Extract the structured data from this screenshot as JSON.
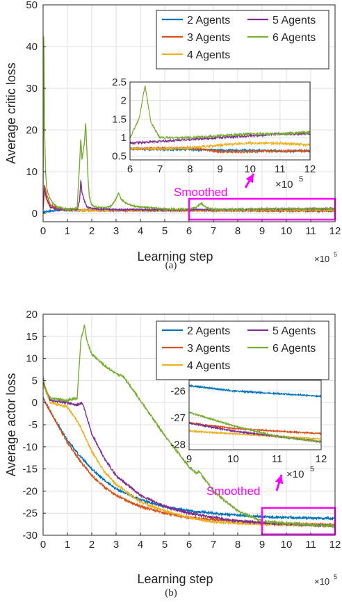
{
  "colors": {
    "2 Agents": "#0072BD",
    "3 Agents": "#D95319",
    "4 Agents": "#EDB120",
    "5 Agents": "#7E2F8E",
    "6 Agents": "#77AC30",
    "highlight": "#FF00FF"
  },
  "chart_data": [
    {
      "type": "line",
      "panel_label": "(a)",
      "xlabel": "Learning step",
      "ylabel": "Average critic loss",
      "x_multiplier": "×10",
      "x_exponent": "5",
      "xlim": [
        0,
        12
      ],
      "ylim": [
        -2,
        50
      ],
      "xticks": [
        0,
        1,
        2,
        3,
        4,
        5,
        6,
        7,
        8,
        9,
        10,
        11,
        12
      ],
      "yticks": [
        0,
        10,
        20,
        30,
        40,
        50
      ],
      "grid": true,
      "legend": {
        "location": "top-right",
        "entries": [
          "2 Agents",
          "5 Agents",
          "3 Agents",
          "6 Agents",
          "4 Agents"
        ]
      },
      "annotation": "Smoothed",
      "series": [
        {
          "name": "2 Agents",
          "x": [
            0,
            0.1,
            0.3,
            0.6,
            1.0,
            1.5,
            2,
            3,
            4,
            5,
            6,
            7,
            8,
            9,
            10,
            11,
            12
          ],
          "y": [
            0.3,
            0.4,
            0.6,
            0.7,
            0.8,
            0.7,
            0.7,
            0.7,
            0.7,
            0.7,
            0.7,
            0.68,
            0.68,
            0.66,
            0.66,
            0.64,
            0.64
          ]
        },
        {
          "name": "3 Agents",
          "x": [
            0,
            0.05,
            0.15,
            0.3,
            0.6,
            1.0,
            1.5,
            2,
            3,
            4,
            5,
            6,
            7,
            8,
            9,
            10,
            11,
            12
          ],
          "y": [
            1.0,
            7.0,
            4.5,
            2.0,
            1.2,
            0.9,
            0.8,
            0.8,
            0.75,
            0.72,
            0.7,
            0.7,
            0.72,
            0.72,
            0.62,
            0.62,
            0.64,
            0.64
          ]
        },
        {
          "name": "4 Agents",
          "x": [
            0,
            0.05,
            0.15,
            0.3,
            0.6,
            1.0,
            1.5,
            2,
            3,
            4,
            5,
            6,
            7,
            8,
            9,
            10,
            11,
            12
          ],
          "y": [
            0.5,
            5.0,
            3.0,
            1.5,
            1.0,
            0.8,
            0.7,
            0.7,
            0.7,
            0.7,
            0.7,
            0.7,
            0.7,
            0.72,
            0.8,
            0.85,
            0.85,
            0.8
          ]
        },
        {
          "name": "5 Agents",
          "x": [
            0,
            0.05,
            0.15,
            0.3,
            0.6,
            1.0,
            1.4,
            1.5,
            1.55,
            1.6,
            1.7,
            1.8,
            2.0,
            2.5,
            3,
            4,
            5,
            6,
            7,
            8,
            9,
            10,
            11,
            12
          ],
          "y": [
            1.0,
            6.0,
            3.5,
            1.5,
            1.0,
            0.9,
            1.0,
            3.0,
            8.0,
            5.0,
            3.0,
            1.5,
            1.2,
            1.0,
            0.9,
            0.9,
            0.85,
            0.85,
            0.9,
            0.95,
            1.0,
            1.05,
            1.1,
            1.1
          ]
        },
        {
          "name": "6 Agents",
          "x": [
            0,
            0.03,
            0.06,
            0.1,
            0.15,
            0.25,
            0.4,
            0.6,
            1.0,
            1.4,
            1.5,
            1.55,
            1.6,
            1.65,
            1.7,
            1.75,
            1.8,
            1.85,
            1.9,
            2.0,
            2.2,
            2.5,
            2.8,
            3.0,
            3.1,
            3.2,
            3.4,
            3.7,
            4.0,
            5.0,
            6.0,
            6.3,
            6.5,
            6.7,
            7.0,
            8,
            9,
            10,
            11,
            12
          ],
          "y": [
            5.0,
            47.0,
            20.0,
            10.0,
            6.0,
            4.0,
            2.5,
            1.5,
            1.0,
            1.2,
            12.0,
            18.0,
            13.0,
            15.0,
            17.0,
            22.0,
            15.0,
            8.0,
            4.0,
            2.0,
            1.5,
            1.3,
            1.8,
            3.5,
            5.0,
            3.5,
            2.5,
            1.8,
            1.5,
            1.1,
            1.0,
            1.5,
            2.4,
            1.4,
            1.0,
            1.0,
            1.05,
            1.1,
            1.1,
            1.15
          ]
        }
      ],
      "inset": {
        "xlim": [
          6,
          12
        ],
        "ylim": [
          0.4,
          2.5
        ],
        "xticks": [
          6,
          7,
          8,
          9,
          10,
          11,
          12
        ],
        "yticks": [
          0.5,
          1,
          1.5,
          2,
          2.5
        ],
        "ytick_labels": [
          "0.5",
          "1",
          "1.5",
          "2",
          "2.5"
        ],
        "x_multiplier": "×10",
        "x_exponent": "5"
      },
      "highlight_box": {
        "x": [
          6,
          12
        ],
        "y": [
          -1.5,
          3.5
        ]
      }
    },
    {
      "type": "line",
      "panel_label": "(b)",
      "xlabel": "Learning step",
      "ylabel": "Average actor loss",
      "x_multiplier": "×10",
      "x_exponent": "5",
      "xlim": [
        0,
        12
      ],
      "ylim": [
        -30,
        20
      ],
      "xticks": [
        0,
        1,
        2,
        3,
        4,
        5,
        6,
        7,
        8,
        9,
        10,
        11,
        12
      ],
      "yticks": [
        -30,
        -25,
        -20,
        -15,
        -10,
        -5,
        0,
        5,
        10,
        15,
        20
      ],
      "grid": true,
      "legend": {
        "location": "top-right",
        "entries": [
          "2 Agents",
          "5 Agents",
          "3 Agents",
          "6 Agents",
          "4 Agents"
        ]
      },
      "annotation": "Smoothed",
      "series": [
        {
          "name": "2 Agents",
          "x": [
            0,
            0.5,
            1,
            1.5,
            2,
            2.5,
            3,
            4,
            5,
            6,
            7,
            8,
            9,
            10,
            11,
            12
          ],
          "y": [
            1.0,
            -4.0,
            -8.5,
            -12.0,
            -15.0,
            -17.5,
            -19.5,
            -22.0,
            -23.5,
            -24.5,
            -25.0,
            -25.5,
            -25.8,
            -26.0,
            -26.1,
            -26.2
          ]
        },
        {
          "name": "3 Agents",
          "x": [
            0,
            0.5,
            1,
            1.5,
            2,
            2.5,
            3,
            4,
            5,
            6,
            7,
            8,
            9,
            10,
            11,
            12
          ],
          "y": [
            1.0,
            -4.0,
            -9.0,
            -13.0,
            -16.5,
            -19.0,
            -21.0,
            -23.5,
            -25.0,
            -26.0,
            -26.5,
            -26.8,
            -27.2,
            -27.4,
            -27.5,
            -27.6
          ]
        },
        {
          "name": "4 Agents",
          "x": [
            0,
            0.3,
            1,
            1.5,
            2,
            2.5,
            3,
            4,
            5,
            6,
            7,
            8,
            9,
            10,
            11,
            12
          ],
          "y": [
            4.0,
            0.0,
            -1.0,
            -5.0,
            -11.0,
            -15.5,
            -18.5,
            -22.5,
            -24.5,
            -26.0,
            -27.0,
            -27.3,
            -27.5,
            -27.6,
            -27.7,
            -27.8
          ]
        },
        {
          "name": "5 Agents",
          "x": [
            0,
            0.3,
            1,
            1.4,
            1.6,
            1.7,
            2,
            2.5,
            3,
            4,
            5,
            6,
            7,
            8,
            9,
            10,
            11,
            12
          ],
          "y": [
            4.5,
            0.5,
            0.0,
            -0.5,
            0.0,
            -1.5,
            -7.0,
            -12.5,
            -16.5,
            -21.0,
            -23.5,
            -25.0,
            -26.0,
            -26.8,
            -27.2,
            -27.5,
            -27.7,
            -27.9
          ]
        },
        {
          "name": "6 Agents",
          "x": [
            0,
            0.1,
            0.3,
            1,
            1.4,
            1.55,
            1.7,
            1.8,
            2.0,
            2.5,
            3,
            3.3,
            4,
            5,
            6,
            6.3,
            6.4,
            7,
            8,
            9,
            10,
            11,
            12
          ],
          "y": [
            6.0,
            3.0,
            1.0,
            0.5,
            1.0,
            14.0,
            17.5,
            14.0,
            11.0,
            8.5,
            6.5,
            6.0,
            0.5,
            -7.5,
            -14.5,
            -16.0,
            -15.5,
            -20.0,
            -24.5,
            -26.8,
            -27.3,
            -27.7,
            -27.9
          ]
        }
      ],
      "inset": {
        "xlim": [
          9,
          12
        ],
        "ylim": [
          -28.2,
          -25.6
        ],
        "xticks": [
          9,
          10,
          11,
          12
        ],
        "yticks": [
          -26,
          -27,
          -28
        ],
        "ytick_labels": [
          "-26",
          "-27",
          "-28"
        ],
        "x_multiplier": "×10",
        "x_exponent": "5"
      },
      "highlight_box": {
        "x": [
          9,
          12
        ],
        "y": [
          -29.8,
          -23.8
        ]
      }
    }
  ]
}
